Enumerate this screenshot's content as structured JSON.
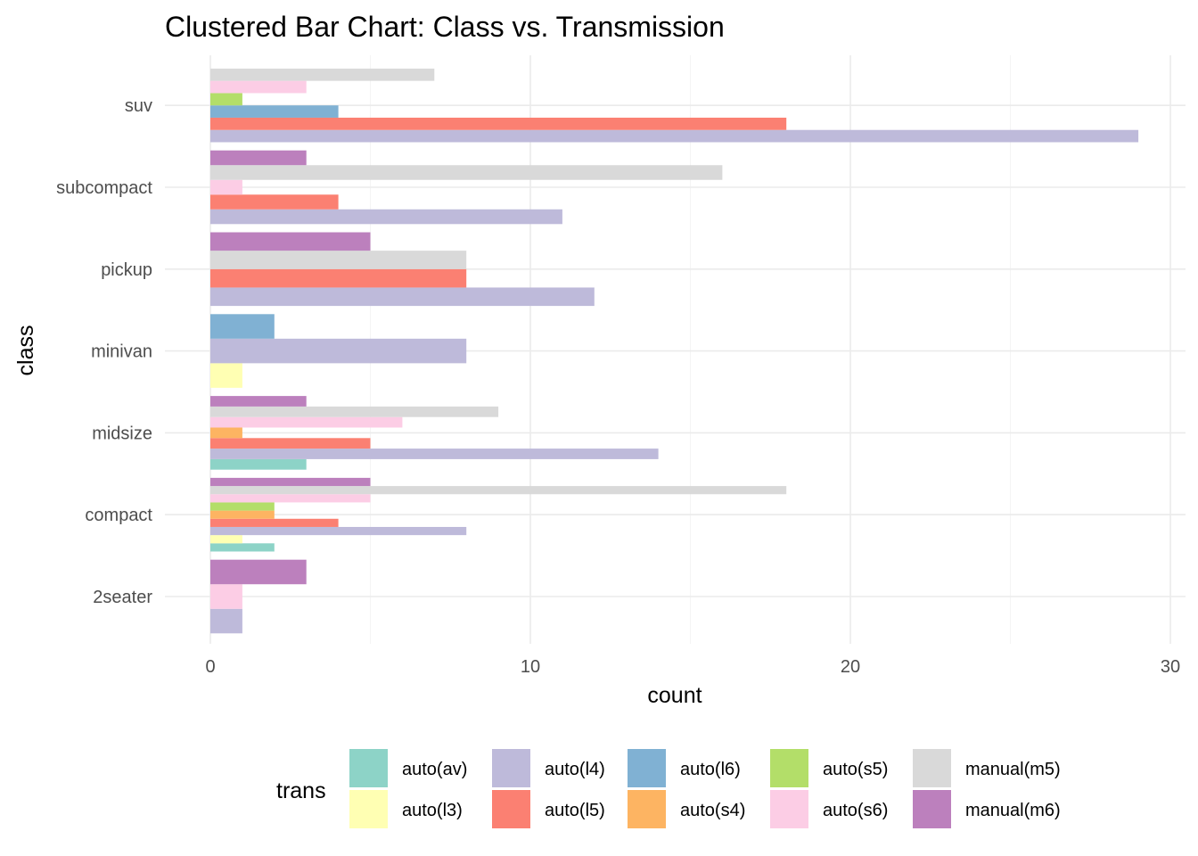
{
  "chart_data": {
    "type": "bar",
    "orientation": "horizontal",
    "title": "Clustered Bar Chart: Class vs. Transmission",
    "xlabel": "count",
    "ylabel": "class",
    "xlim": [
      0,
      30
    ],
    "x_ticks": [
      "0",
      "10",
      "20",
      "30"
    ],
    "grid": true,
    "legend_title": "trans",
    "legend_position": "bottom",
    "categories": [
      "2seater",
      "compact",
      "midsize",
      "minivan",
      "pickup",
      "subcompact",
      "suv"
    ],
    "series": [
      {
        "name": "auto(av)",
        "color": "#8DD3C7",
        "values": [
          0,
          2,
          3,
          0,
          0,
          0,
          0
        ]
      },
      {
        "name": "auto(l3)",
        "color": "#FFFFB3",
        "values": [
          0,
          1,
          0,
          1,
          0,
          0,
          0
        ]
      },
      {
        "name": "auto(l4)",
        "color": "#BEBADA",
        "values": [
          1,
          8,
          14,
          8,
          12,
          11,
          29
        ]
      },
      {
        "name": "auto(l5)",
        "color": "#FB8072",
        "values": [
          0,
          4,
          5,
          0,
          8,
          4,
          18
        ]
      },
      {
        "name": "auto(l6)",
        "color": "#80B1D3",
        "values": [
          0,
          0,
          0,
          2,
          0,
          0,
          4
        ]
      },
      {
        "name": "auto(s4)",
        "color": "#FDB462",
        "values": [
          0,
          2,
          1,
          0,
          0,
          0,
          0
        ]
      },
      {
        "name": "auto(s5)",
        "color": "#B3DE69",
        "values": [
          0,
          2,
          0,
          0,
          0,
          0,
          1
        ]
      },
      {
        "name": "auto(s6)",
        "color": "#FCCDE5",
        "values": [
          1,
          5,
          6,
          0,
          0,
          1,
          3
        ]
      },
      {
        "name": "manual(m5)",
        "color": "#D9D9D9",
        "values": [
          0,
          18,
          9,
          0,
          8,
          16,
          7
        ]
      },
      {
        "name": "manual(m6)",
        "color": "#BC80BD",
        "values": [
          3,
          5,
          3,
          0,
          5,
          3,
          0
        ]
      }
    ]
  }
}
